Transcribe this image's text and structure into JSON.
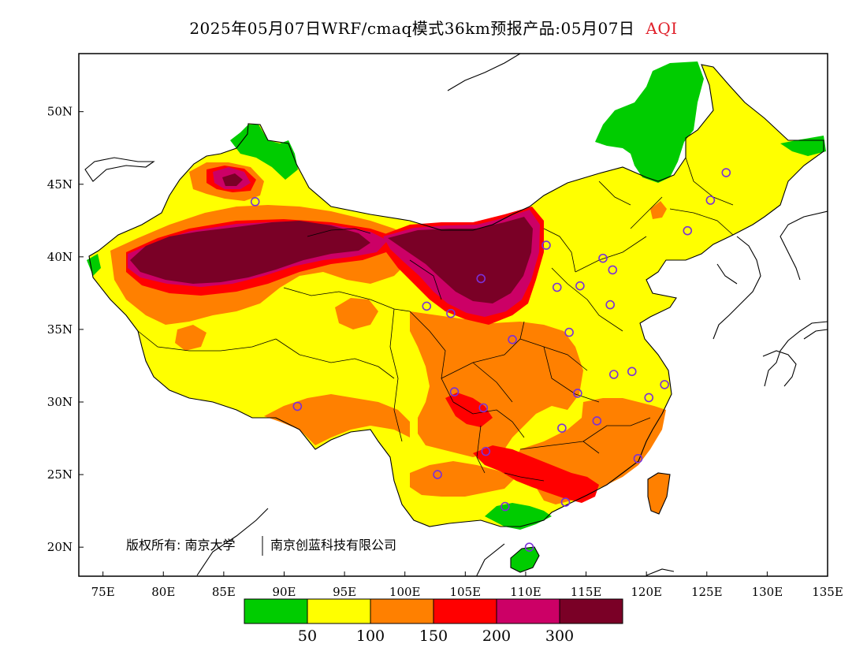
{
  "title": {
    "main": "2025年05月07日WRF/cmaq模式36km预报产品:05月07日",
    "variable": "AQI"
  },
  "map": {
    "lon_range": [
      73,
      135
    ],
    "lat_range": [
      18,
      54
    ],
    "lon_ticks": [
      "75E",
      "80E",
      "85E",
      "90E",
      "95E",
      "100E",
      "105E",
      "110E",
      "115E",
      "120E",
      "125E",
      "130E",
      "135E"
    ],
    "lat_ticks": [
      "20N",
      "25N",
      "30N",
      "35N",
      "40N",
      "45N",
      "50N"
    ],
    "copyright": "版权所有: 南京大学",
    "copyright2": "南京创蓝科技有限公司",
    "stations": [
      [
        87.6,
        43.8
      ],
      [
        91.1,
        29.7
      ],
      [
        101.8,
        36.6
      ],
      [
        103.8,
        36.1
      ],
      [
        106.3,
        38.5
      ],
      [
        104.1,
        30.7
      ],
      [
        106.5,
        29.6
      ],
      [
        108.9,
        34.3
      ],
      [
        111.7,
        40.8
      ],
      [
        112.6,
        37.9
      ],
      [
        114.5,
        38.0
      ],
      [
        116.4,
        39.9
      ],
      [
        117.2,
        39.1
      ],
      [
        113.6,
        34.8
      ],
      [
        114.3,
        30.6
      ],
      [
        113.0,
        28.2
      ],
      [
        115.9,
        28.7
      ],
      [
        117.0,
        36.7
      ],
      [
        117.3,
        31.9
      ],
      [
        118.8,
        32.1
      ],
      [
        120.2,
        30.3
      ],
      [
        121.5,
        31.2
      ],
      [
        119.3,
        26.1
      ],
      [
        113.3,
        23.1
      ],
      [
        108.3,
        22.8
      ],
      [
        110.3,
        20.0
      ],
      [
        106.7,
        26.6
      ],
      [
        102.7,
        25.0
      ],
      [
        123.4,
        41.8
      ],
      [
        125.3,
        43.9
      ],
      [
        126.6,
        45.8
      ]
    ]
  },
  "legend": {
    "levels": [
      "50",
      "100",
      "150",
      "200",
      "300"
    ],
    "colors": [
      "#00cc00",
      "#ffff00",
      "#ff8000",
      "#ff0000",
      "#cc0066",
      "#7a0026"
    ]
  },
  "colors": {
    "good": "#00cc00",
    "moderate": "#ffff00",
    "usg": "#ff8000",
    "unhealthy": "#ff0000",
    "very_unhealthy": "#cc0066",
    "hazardous": "#7a0026"
  }
}
